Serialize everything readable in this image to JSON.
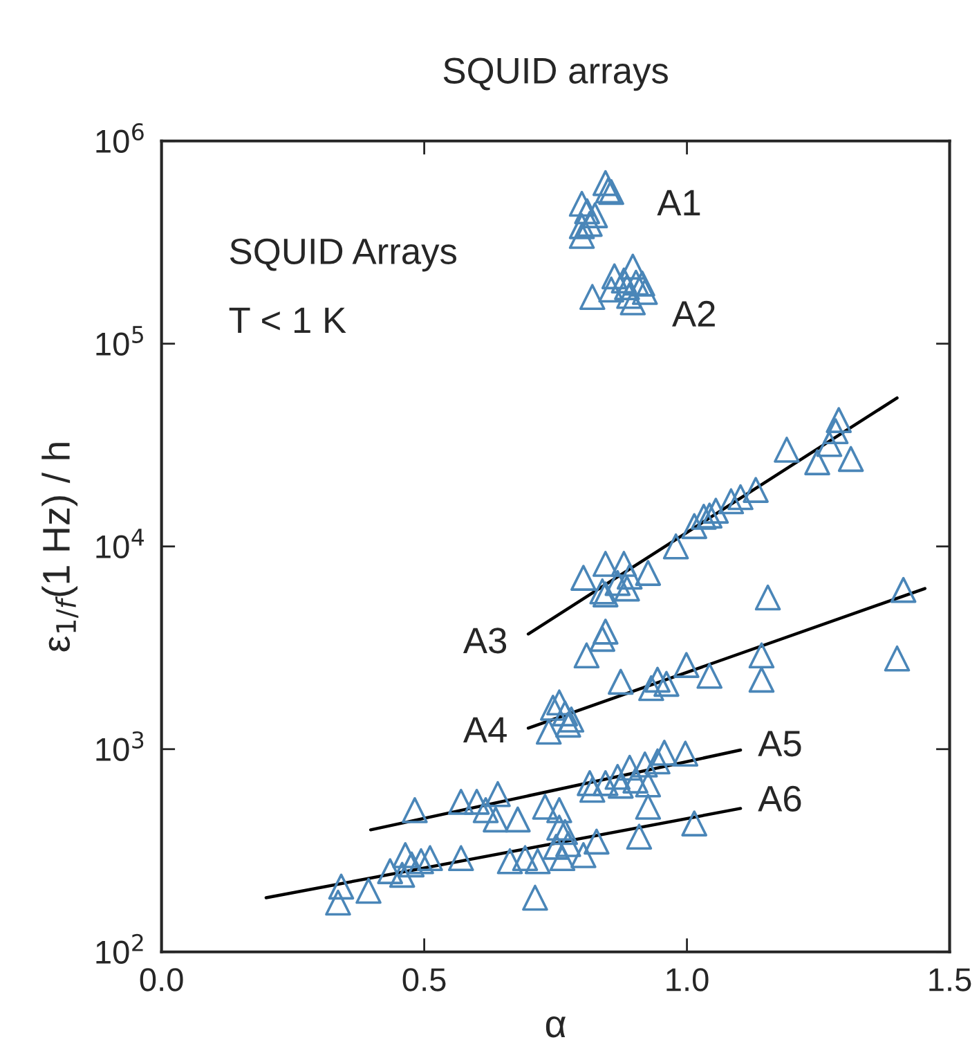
{
  "chart_data": {
    "type": "scatter",
    "title": "SQUID arrays",
    "xlabel": "α",
    "ylabel": "ε$_{1/f}$(1 Hz) / h",
    "log": "y",
    "xlim": [
      0.0,
      1.5
    ],
    "xticks": [
      {
        "value": 0.0,
        "label": "0.0"
      },
      0.5,
      {
        "value": 1.0,
        "label": "1.0"
      },
      1.5
    ],
    "ylim": [
      100,
      1000000
    ],
    "yticks": [
      {
        "value": 100,
        "label": "10$^{2}$"
      },
      {
        "value": 1000,
        "label": "10$^{3}$"
      },
      {
        "value": 10000,
        "label": "10$^{4}$"
      },
      {
        "value": 100000,
        "label": "10$^{5}$"
      },
      {
        "value": 1000000,
        "label": "10$^{6}$"
      }
    ],
    "grid": false,
    "legend": false,
    "marker": "triangle",
    "series": [
      {
        "color": "#4a86b8",
        "x": [
          0.845,
          0.856,
          0.8,
          0.81,
          0.825,
          0.8,
          0.8,
          0.815,
          0.85,
          0.897,
          0.862,
          0.88,
          0.903,
          0.92,
          0.89,
          0.82,
          0.897,
          0.856,
          0.915,
          0.886,
          1.289,
          1.283,
          1.271,
          1.19,
          1.248,
          1.312,
          1.131,
          1.102,
          1.084,
          1.055,
          1.032,
          1.043,
          1.014,
          0.979,
          0.926,
          0.88,
          0.845,
          0.803,
          0.891,
          0.868,
          0.839,
          0.886,
          0.845,
          0.845,
          0.839,
          0.809,
          1.154,
          1.412,
          1.4,
          1.142,
          1.142,
          0.999,
          1.043,
          0.874,
          0.944,
          0.961,
          0.932,
          0.757,
          0.745,
          0.768,
          0.78,
          0.774,
          0.737,
          0.997,
          0.957,
          0.944,
          0.92,
          0.891,
          0.868,
          0.845,
          0.815,
          0.82,
          0.926,
          0.902,
          0.874,
          0.64,
          0.57,
          0.6,
          0.617,
          0.482,
          0.636,
          0.678,
          0.73,
          0.757,
          0.926,
          1.014,
          0.909,
          0.828,
          0.768,
          0.757,
          0.774,
          0.751,
          0.803,
          0.763,
          0.692,
          0.663,
          0.716,
          0.711,
          0.57,
          0.511,
          0.494,
          0.464,
          0.435,
          0.458,
          0.394,
          0.342,
          0.336,
          0.476
        ],
        "values": [
          620000,
          560000,
          490000,
          450000,
          430000,
          380000,
          340000,
          390000,
          570000,
          240000,
          215000,
          205000,
          200000,
          180000,
          172000,
          170000,
          160000,
          185000,
          198000,
          190000,
          42000,
          37000,
          32000,
          30000,
          26000,
          27000,
          19000,
          17500,
          16700,
          15000,
          14000,
          14200,
          12600,
          10000,
          7400,
          8200,
          8200,
          7000,
          7100,
          6600,
          6000,
          6200,
          5800,
          3800,
          3500,
          2900,
          5600,
          6100,
          2800,
          2900,
          2200,
          2600,
          2300,
          2150,
          2200,
          2100,
          2000,
          1700,
          1600,
          1500,
          1400,
          1320,
          1220,
          950,
          960,
          870,
          840,
          810,
          730,
          680,
          680,
          630,
          670,
          700,
          660,
          600,
          550,
          550,
          500,
          500,
          450,
          450,
          520,
          500,
          520,
          430,
          370,
          350,
          390,
          410,
          340,
          330,
          300,
          290,
          290,
          280,
          280,
          185,
          290,
          290,
          280,
          300,
          250,
          240,
          200,
          210,
          175,
          270
        ]
      },
      {
        "type": "line",
        "color": "#000000",
        "marker": "none",
        "x": [
          0.698,
          1.4
        ],
        "values": [
          3700,
          54000
        ]
      },
      {
        "type": "line",
        "color": "#000000",
        "marker": "none",
        "x": [
          0.698,
          1.453
        ],
        "values": [
          1270,
          6200
        ]
      },
      {
        "type": "line",
        "color": "#000000",
        "marker": "none",
        "x": [
          0.398,
          1.102
        ],
        "values": [
          400,
          990
        ]
      },
      {
        "type": "line",
        "color": "#000000",
        "marker": "none",
        "x": [
          0.199,
          1.102
        ],
        "values": [
          185,
          510
        ]
      }
    ],
    "annotations": [
      "SQUID Arrays",
      "T < 1 K",
      "A1",
      "A2",
      "A3",
      "A4",
      "A5",
      "A6"
    ]
  }
}
